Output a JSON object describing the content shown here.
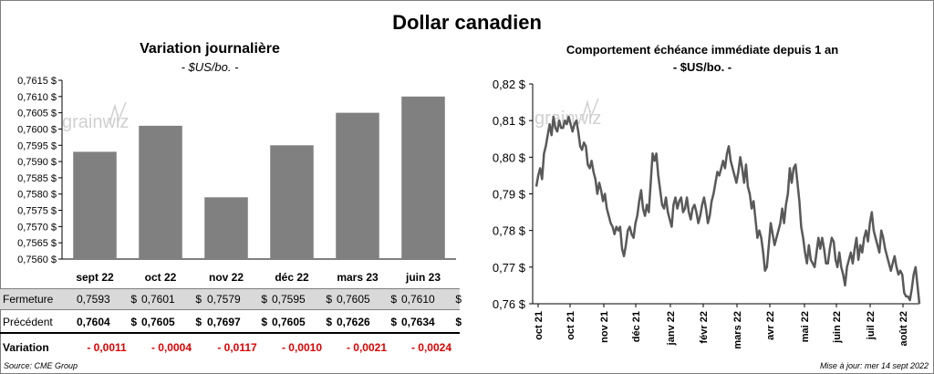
{
  "main_title": "Dollar canadien",
  "left": {
    "title": "Variation  journalière",
    "subtitle": "- $US/bo. -"
  },
  "right": {
    "title": "Comportement échéance immédiate depuis 1 an",
    "subtitle": "- $US/bo. -"
  },
  "watermark": "grainwiz",
  "colors": {
    "bar": "#808080",
    "line": "#595959",
    "negative": "#e00000"
  },
  "chart_data": [
    {
      "type": "bar",
      "categories": [
        "sept 22",
        "oct 22",
        "nov 22",
        "déc 22",
        "mars 23",
        "juin 23"
      ],
      "values": [
        0.7593,
        0.7601,
        0.7579,
        0.7595,
        0.7605,
        0.761
      ],
      "ylim": [
        0.756,
        0.7615
      ],
      "yticks": [
        "0,7560 $",
        "0,7565 $",
        "0,7570 $",
        "0,7575 $",
        "0,7580 $",
        "0,7585 $",
        "0,7590 $",
        "0,7595 $",
        "0,7600 $",
        "0,7605 $",
        "0,7610 $",
        "0,7615 $"
      ],
      "grid": false
    },
    {
      "type": "line",
      "ylim": [
        0.76,
        0.82
      ],
      "yticks": [
        "0,76 $",
        "0,77 $",
        "0,78 $",
        "0,79 $",
        "0,80 $",
        "0,81 $",
        "0,82 $"
      ],
      "xticks": [
        "oct 21",
        "oct 21",
        "nov 21",
        "déc 21",
        "janv 22",
        "févr 22",
        "mars 22",
        "avr 22",
        "mai 22",
        "juin 22",
        "juil 22",
        "août 22"
      ],
      "grid": false,
      "series": [
        {
          "values": [
            0.792,
            0.795,
            0.797,
            0.794,
            0.801,
            0.803,
            0.806,
            0.809,
            0.806,
            0.811,
            0.808,
            0.807,
            0.81,
            0.808,
            0.808,
            0.81,
            0.809,
            0.811,
            0.809,
            0.807,
            0.809,
            0.81,
            0.807,
            0.803,
            0.802,
            0.804,
            0.803,
            0.798,
            0.797,
            0.799,
            0.796,
            0.794,
            0.79,
            0.793,
            0.791,
            0.788,
            0.79,
            0.786,
            0.784,
            0.782,
            0.781,
            0.779,
            0.781,
            0.78,
            0.781,
            0.775,
            0.773,
            0.776,
            0.78,
            0.781,
            0.779,
            0.778,
            0.782,
            0.784,
            0.788,
            0.791,
            0.786,
            0.784,
            0.787,
            0.785,
            0.793,
            0.801,
            0.799,
            0.801,
            0.795,
            0.791,
            0.787,
            0.786,
            0.789,
            0.785,
            0.783,
            0.781,
            0.787,
            0.789,
            0.786,
            0.788,
            0.789,
            0.785,
            0.786,
            0.789,
            0.785,
            0.783,
            0.786,
            0.787,
            0.785,
            0.782,
            0.784,
            0.787,
            0.789,
            0.786,
            0.782,
            0.784,
            0.788,
            0.79,
            0.793,
            0.796,
            0.795,
            0.797,
            0.799,
            0.797,
            0.801,
            0.803,
            0.799,
            0.797,
            0.795,
            0.793,
            0.796,
            0.8,
            0.797,
            0.793,
            0.798,
            0.792,
            0.79,
            0.786,
            0.788,
            0.783,
            0.778,
            0.78,
            0.778,
            0.774,
            0.769,
            0.77,
            0.776,
            0.782,
            0.779,
            0.776,
            0.778,
            0.78,
            0.782,
            0.786,
            0.782,
            0.787,
            0.79,
            0.797,
            0.793,
            0.797,
            0.798,
            0.793,
            0.788,
            0.781,
            0.778,
            0.774,
            0.771,
            0.776,
            0.772,
            0.771,
            0.77,
            0.774,
            0.778,
            0.775,
            0.778,
            0.775,
            0.771,
            0.771,
            0.775,
            0.778,
            0.777,
            0.772,
            0.77,
            0.774,
            0.77,
            0.768,
            0.765,
            0.77,
            0.772,
            0.774,
            0.771,
            0.775,
            0.778,
            0.772,
            0.776,
            0.774,
            0.778,
            0.78,
            0.777,
            0.782,
            0.785,
            0.78,
            0.778,
            0.776,
            0.774,
            0.78,
            0.778,
            0.775,
            0.773,
            0.771,
            0.769,
            0.771,
            0.773,
            0.77,
            0.768,
            0.769,
            0.768,
            0.763,
            0.762,
            0.762,
            0.761,
            0.764,
            0.768,
            0.77,
            0.765,
            0.76
          ]
        }
      ]
    }
  ],
  "table": {
    "rows": [
      {
        "label": "Fermeture",
        "cells": [
          "0,7593",
          "0,7601",
          "0,7579",
          "0,7595",
          "0,7605",
          "0,7610"
        ]
      },
      {
        "label": "Précédent",
        "cells": [
          "0,7604",
          "0,7605",
          "0,7697",
          "0,7605",
          "0,7626",
          "0,7634"
        ]
      },
      {
        "label": "Variation",
        "cells": [
          "- 0,0011",
          "- 0,0004",
          "- 0,0117",
          "- 0,0010",
          "- 0,0021",
          "- 0,0024"
        ]
      }
    ],
    "currency": "$"
  },
  "source": "Source: CME Group",
  "update": "Mise à jour: mer 14 sept 2022"
}
